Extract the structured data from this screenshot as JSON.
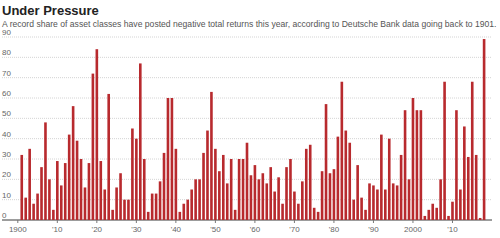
{
  "chart_data": {
    "type": "bar",
    "title": "Under Pressure",
    "subtitle": "A record share of asset classes have posted negative total returns this year, according to Deutsche Bank data going back to 1901.",
    "x": [
      1901,
      1902,
      1903,
      1904,
      1905,
      1906,
      1907,
      1908,
      1909,
      1910,
      1911,
      1912,
      1913,
      1914,
      1915,
      1916,
      1917,
      1918,
      1919,
      1920,
      1921,
      1922,
      1923,
      1924,
      1925,
      1926,
      1927,
      1928,
      1929,
      1930,
      1931,
      1932,
      1933,
      1934,
      1935,
      1936,
      1937,
      1938,
      1939,
      1940,
      1941,
      1942,
      1943,
      1944,
      1945,
      1946,
      1947,
      1948,
      1949,
      1950,
      1951,
      1952,
      1953,
      1954,
      1955,
      1956,
      1957,
      1958,
      1959,
      1960,
      1961,
      1962,
      1963,
      1964,
      1965,
      1966,
      1967,
      1968,
      1969,
      1970,
      1971,
      1972,
      1973,
      1974,
      1975,
      1976,
      1977,
      1978,
      1979,
      1980,
      1981,
      1982,
      1983,
      1984,
      1985,
      1986,
      1987,
      1988,
      1989,
      1990,
      1991,
      1992,
      1993,
      1994,
      1995,
      1996,
      1997,
      1998,
      1999,
      2000,
      2001,
      2002,
      2003,
      2004,
      2005,
      2006,
      2007,
      2008,
      2009,
      2010,
      2011,
      2012,
      2013,
      2014,
      2015,
      2016,
      2017,
      2018
    ],
    "values": [
      32,
      11,
      35,
      8,
      13,
      26,
      48,
      20,
      5,
      29,
      17,
      28,
      42,
      56,
      39,
      30,
      16,
      28,
      72,
      84,
      29,
      15,
      62,
      5,
      16,
      23,
      10,
      10,
      45,
      40,
      77,
      30,
      4,
      13,
      13,
      19,
      33,
      60,
      60,
      35,
      4,
      8,
      10,
      15,
      20,
      20,
      33,
      44,
      63,
      35,
      24,
      32,
      18,
      30,
      5,
      30,
      30,
      38,
      22,
      27,
      20,
      23,
      18,
      26,
      14,
      21,
      8,
      26,
      30,
      14,
      8,
      19,
      35,
      37,
      6,
      4,
      24,
      57,
      23,
      25,
      41,
      68,
      44,
      38,
      10,
      27,
      11,
      5,
      18,
      17,
      15,
      42,
      15,
      40,
      18,
      17,
      32,
      54,
      20,
      60,
      54,
      54,
      2,
      5,
      8,
      6,
      20,
      68,
      2,
      9,
      54,
      15,
      46,
      31,
      68,
      32,
      1,
      89
    ],
    "color": "#b82a2e",
    "xlim": [
      1896,
      2020
    ],
    "xticks": [
      1900,
      {
        "value": 1910,
        "label": "'10"
      },
      {
        "value": 1920,
        "label": "'20"
      },
      {
        "value": 1930,
        "label": "'30"
      },
      {
        "value": 1940,
        "label": "'40"
      },
      {
        "value": 1950,
        "label": "'50"
      },
      {
        "value": 1960,
        "label": "'60"
      },
      {
        "value": 1970,
        "label": "'70"
      },
      {
        "value": 1980,
        "label": "'80"
      },
      {
        "value": 1990,
        "label": "'90"
      },
      2000,
      {
        "value": 2010,
        "label": "'10"
      }
    ],
    "ylim": [
      0,
      90
    ],
    "yticks": [
      0,
      10,
      20,
      30,
      40,
      50,
      60,
      70,
      80,
      90
    ],
    "grid": true
  }
}
